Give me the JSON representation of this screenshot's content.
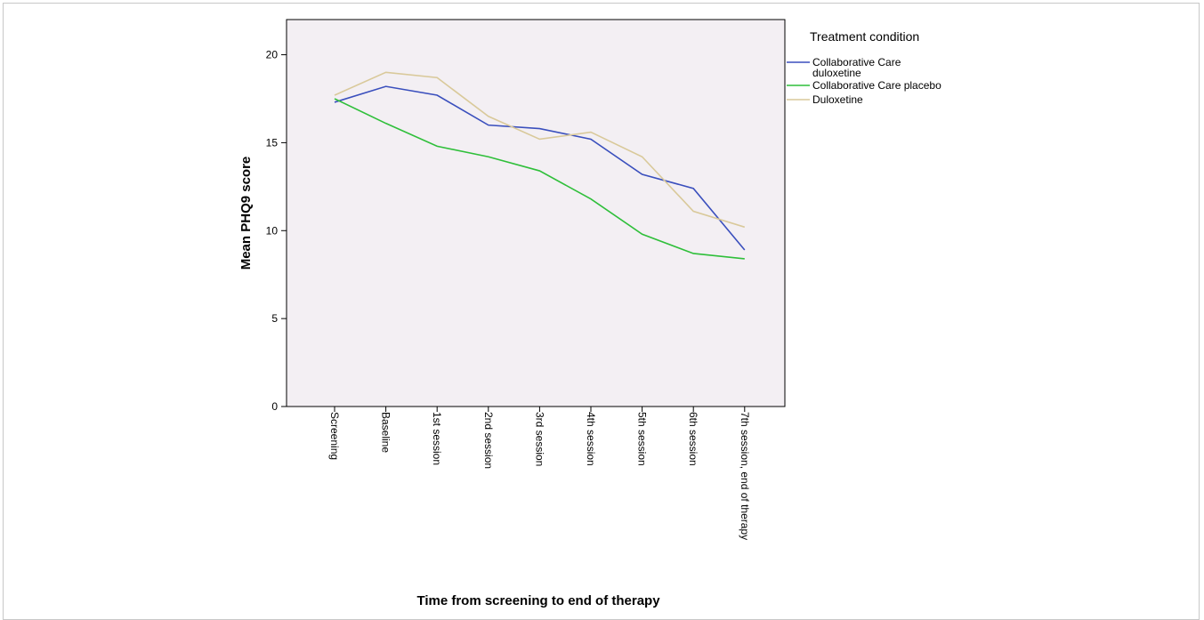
{
  "chart_data": {
    "type": "line",
    "xlabel": "Time from screening to end of therapy",
    "ylabel": "Mean PHQ9 score",
    "ylim": [
      0,
      22
    ],
    "yticks": [
      0,
      5,
      10,
      15,
      20
    ],
    "categories": [
      "Screening",
      "Baseline",
      "1st session",
      "2nd session",
      "3rd session",
      "4th session",
      "5th session",
      "6th session",
      "7th session, end of therapy"
    ],
    "grid": false,
    "legend_title": "Treatment condition",
    "legend_position": "right",
    "background_color": "#f3eff3",
    "series": [
      {
        "name": "Collaborative Care duloxetine",
        "name_lines": [
          "Collaborative Care",
          "duloxetine"
        ],
        "color": "#3a4fbd",
        "values": [
          17.3,
          18.2,
          17.7,
          16.0,
          15.8,
          15.2,
          13.2,
          12.4,
          8.9
        ]
      },
      {
        "name": "Collaborative Care placebo",
        "name_lines": [
          "Collaborative Care placebo"
        ],
        "color": "#2fbf3a",
        "values": [
          17.5,
          16.1,
          14.8,
          14.2,
          13.4,
          11.8,
          9.8,
          8.7,
          8.4
        ]
      },
      {
        "name": "Duloxetine",
        "name_lines": [
          "Duloxetine"
        ],
        "color": "#d9c99a",
        "values": [
          17.7,
          19.0,
          18.7,
          16.5,
          15.2,
          15.6,
          14.2,
          11.1,
          10.2
        ]
      }
    ]
  }
}
